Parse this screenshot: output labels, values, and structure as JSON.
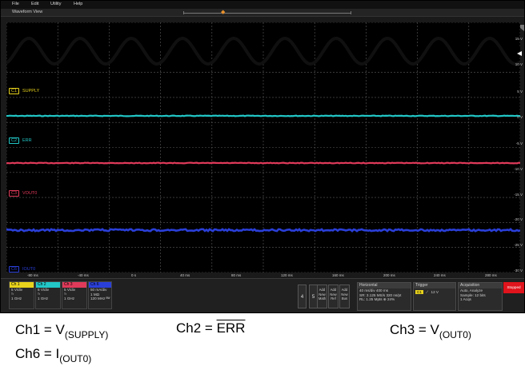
{
  "menu": [
    "File",
    "Edit",
    "Utility",
    "Help"
  ],
  "view_title": "Waveform View",
  "trigger_marker_label": "T",
  "colors": {
    "ch1": "#e8d21c",
    "ch2": "#22c6c6",
    "ch3": "#e03a5a",
    "ch6": "#2a3fd8",
    "trace1": "#101010",
    "accent": "#e8902a",
    "stopped": "#e0141c"
  },
  "channel_labels": [
    {
      "badge": "C1",
      "name": "SUPPLY"
    },
    {
      "badge": "C2",
      "name": "ERR"
    },
    {
      "badge": "C3",
      "name": "VOUT0"
    },
    {
      "badge": "C6",
      "name": "IOUT0"
    }
  ],
  "y_ticks": [
    "15 V",
    "10 V",
    "5 V",
    "0 V",
    "-5 V",
    "-10 V",
    "-15 V",
    "-20 V",
    "-25 V",
    "-30 V"
  ],
  "x_ticks": [
    "-80 ms",
    "-40 ms",
    "0 s",
    "40 ms",
    "80 ms",
    "120 ms",
    "160 ms",
    "200 ms",
    "240 ms",
    "280 ms"
  ],
  "channel_badges": [
    {
      "head": "Ch 1",
      "lines": [
        "5 V/div",
        "ᵀʳ",
        "1 GHz"
      ]
    },
    {
      "head": "Ch 2",
      "lines": [
        "5 V/div",
        "ᵀʳ",
        "1 GHz"
      ]
    },
    {
      "head": "Ch 3",
      "lines": [
        "5 V/div",
        "ᵀʳ",
        "1 GHz"
      ]
    },
    {
      "head": "Ch 6",
      "lines": [
        "50 mA/div",
        "1 MΩ",
        "120 MHz ᴮᵂ"
      ]
    }
  ],
  "small_buttons": [
    "4",
    "5"
  ],
  "add_buttons": [
    [
      "Add",
      "New",
      "Math"
    ],
    [
      "Add",
      "New",
      "Ref"
    ],
    [
      "Add",
      "New",
      "Bus"
    ]
  ],
  "horizontal": {
    "head": "Horizontal",
    "lines": [
      "40 ms/div     400 ms",
      "SR: 3.125 MS/s  320 ns/pt",
      "RL: 1.25 Mpts  ⊕ 24%"
    ]
  },
  "trigger": {
    "head": "Trigger",
    "badge": "C1",
    "level": "12 V"
  },
  "acquisition": {
    "head": "Acquisition",
    "lines": [
      "Auto,    Analyze",
      "Sample: 12 bits",
      "1 Acqs"
    ]
  },
  "stopped_label": "Stopped",
  "captions": {
    "ch1_prefix": "Ch1 = V",
    "ch1_sub": "(SUPPLY)",
    "ch2_prefix": "Ch2 = ",
    "ch2_signal": "ERR",
    "ch3_prefix": "Ch3 = V",
    "ch3_sub": "(OUT0)",
    "ch6_prefix": "Ch6 = I",
    "ch6_sub": "(OUT0)"
  }
}
